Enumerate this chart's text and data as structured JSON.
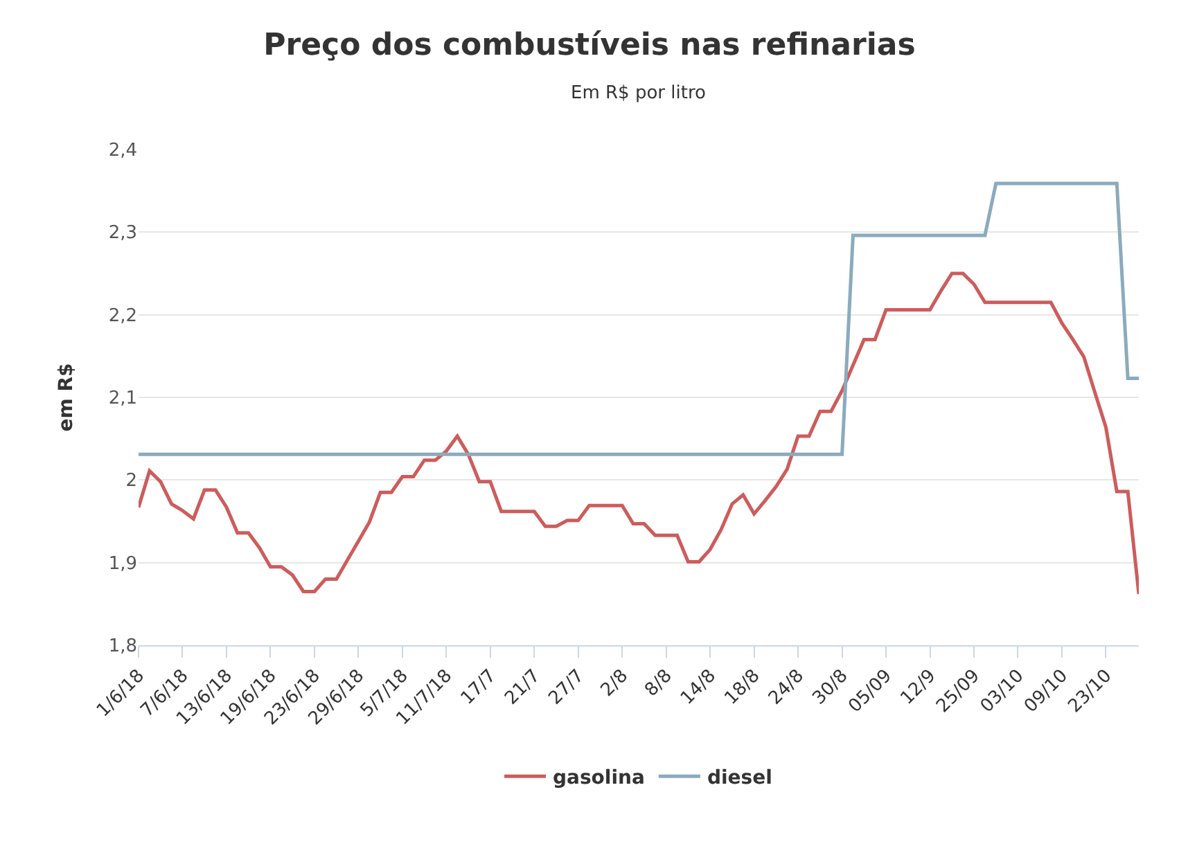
{
  "chart_data": {
    "type": "line",
    "title": "Preço dos combustíveis nas refinarias",
    "subtitle": "Em R$ por litro",
    "ylabel": "em R$",
    "categories": [
      "1/6/18",
      null,
      null,
      null,
      "7/6/18",
      null,
      null,
      null,
      "13/6/18",
      null,
      null,
      null,
      "19/6/18",
      null,
      null,
      null,
      "23/6/18",
      null,
      null,
      null,
      "29/6/18",
      null,
      null,
      null,
      "5/7/18",
      null,
      null,
      null,
      "11/7/18",
      null,
      null,
      null,
      "17/7",
      null,
      null,
      null,
      "21/7",
      null,
      null,
      null,
      "27/7",
      null,
      null,
      null,
      "2/8",
      null,
      null,
      null,
      "8/8",
      null,
      null,
      null,
      "14/8",
      null,
      null,
      null,
      "18/8",
      null,
      null,
      null,
      "24/8",
      null,
      null,
      null,
      "30/8",
      null,
      null,
      null,
      "05/09",
      null,
      null,
      null,
      "12/9",
      null,
      null,
      null,
      "25/09",
      null,
      null,
      null,
      "03/10",
      null,
      null,
      null,
      "09/10",
      null,
      null,
      null,
      "23/10",
      null,
      null,
      null
    ],
    "series": [
      {
        "name": "gasolina",
        "color": "#cd5c5c",
        "values": [
          1.967,
          2.011,
          1.998,
          1.971,
          1.963,
          1.953,
          1.988,
          1.988,
          1.967,
          1.936,
          1.936,
          1.918,
          1.895,
          1.895,
          1.885,
          1.865,
          1.865,
          1.88,
          1.88,
          1.903,
          1.926,
          1.949,
          1.985,
          1.985,
          2.004,
          2.004,
          2.024,
          2.024,
          2.035,
          2.053,
          2.031,
          1.998,
          1.998,
          1.962,
          1.962,
          1.962,
          1.962,
          1.944,
          1.944,
          1.951,
          1.951,
          1.969,
          1.969,
          1.969,
          1.969,
          1.947,
          1.947,
          1.933,
          1.933,
          1.933,
          1.901,
          1.901,
          1.916,
          1.94,
          1.971,
          1.982,
          1.959,
          1.975,
          1.992,
          2.013,
          2.053,
          2.053,
          2.083,
          2.083,
          2.108,
          2.139,
          2.17,
          2.17,
          2.206,
          2.206,
          2.206,
          2.206,
          2.206,
          2.229,
          2.25,
          2.25,
          2.237,
          2.215,
          2.215,
          2.215,
          2.215,
          2.215,
          2.215,
          2.215,
          2.19,
          2.17,
          2.149,
          2.106,
          2.064,
          1.986,
          1.986,
          1.862
        ]
      },
      {
        "name": "diesel",
        "color": "#8aabbd",
        "values": [
          2.031,
          2.031,
          2.031,
          2.031,
          2.031,
          2.031,
          2.031,
          2.031,
          2.031,
          2.031,
          2.031,
          2.031,
          2.031,
          2.031,
          2.031,
          2.031,
          2.031,
          2.031,
          2.031,
          2.031,
          2.031,
          2.031,
          2.031,
          2.031,
          2.031,
          2.031,
          2.031,
          2.031,
          2.031,
          2.031,
          2.031,
          2.031,
          2.031,
          2.031,
          2.031,
          2.031,
          2.031,
          2.031,
          2.031,
          2.031,
          2.031,
          2.031,
          2.031,
          2.031,
          2.031,
          2.031,
          2.031,
          2.031,
          2.031,
          2.031,
          2.031,
          2.031,
          2.031,
          2.031,
          2.031,
          2.031,
          2.031,
          2.031,
          2.031,
          2.031,
          2.031,
          2.031,
          2.031,
          2.031,
          2.031,
          2.296,
          2.296,
          2.296,
          2.296,
          2.296,
          2.296,
          2.296,
          2.296,
          2.296,
          2.296,
          2.296,
          2.296,
          2.296,
          2.359,
          2.359,
          2.359,
          2.359,
          2.359,
          2.359,
          2.359,
          2.359,
          2.359,
          2.359,
          2.359,
          2.359,
          2.123,
          2.123
        ]
      }
    ],
    "ylim": [
      1.8,
      2.4
    ],
    "yticks": [
      {
        "value": 1.8,
        "label": "1,8"
      },
      {
        "value": 1.9,
        "label": "1,9"
      },
      2,
      {
        "value": 2.1,
        "label": "2,1"
      },
      {
        "value": 2.2,
        "label": "2,2"
      },
      {
        "value": 2.3,
        "label": "2,3"
      },
      {
        "value": 2.4,
        "label": "2,4"
      }
    ],
    "grid": "y",
    "legend": "bottom",
    "marker": "none",
    "line_style": "solid"
  }
}
